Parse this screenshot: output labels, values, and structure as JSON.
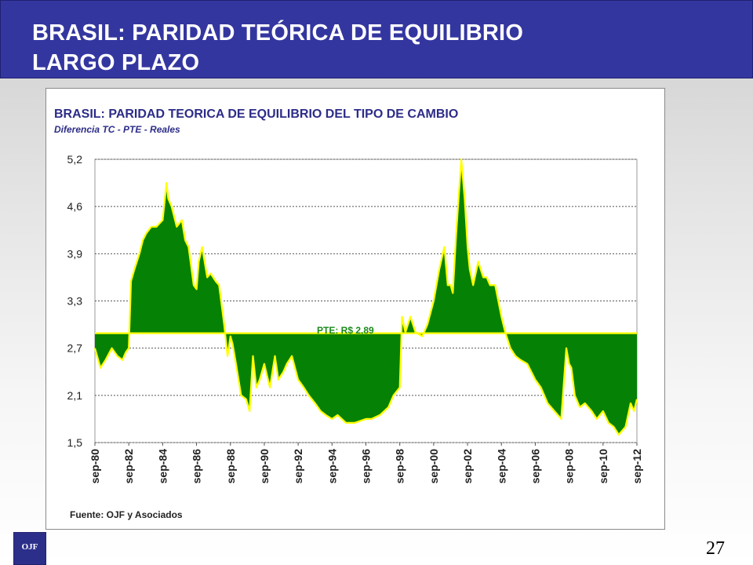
{
  "slide": {
    "title_line1": "BRASIL: PARIDAD TEÓRICA DE EQUILIBRIO",
    "title_line2": "LARGO PLAZO",
    "logo_text": "OJF",
    "page_number": "27"
  },
  "colors": {
    "header_bg": "#3436a0",
    "chart_title": "#2c2c88",
    "fill": "#058205",
    "outline": "#ffff00",
    "annotation": "#1a8a1a"
  },
  "chart_data": {
    "type": "area",
    "title": "BRASIL: PARIDAD TEORICA DE EQUILIBRIO DEL TIPO DE CAMBIO",
    "subtitle": "Diferencia TC - PTE - Reales",
    "source": "Fuente: OJF y Asociados",
    "xlabel": "",
    "ylabel": "",
    "baseline": 2.89,
    "baseline_label": "PTE: R$ 2,89",
    "y_ticks": [
      "5,2",
      "4,6",
      "3,9",
      "3,3",
      "2,7",
      "2,1",
      "1,5"
    ],
    "y_tick_values": [
      5.2,
      4.6,
      3.9,
      3.3,
      2.7,
      2.1,
      1.5
    ],
    "ylim": [
      1.5,
      5.2
    ],
    "x_ticks": [
      "sep-80",
      "sep-82",
      "sep-84",
      "sep-86",
      "sep-88",
      "sep-90",
      "sep-92",
      "sep-94",
      "sep-96",
      "sep-98",
      "sep-00",
      "sep-02",
      "sep-04",
      "sep-06",
      "sep-08",
      "sep-10",
      "sep-12"
    ],
    "x_tick_values": [
      1980.67,
      1982.67,
      1984.67,
      1986.67,
      1988.67,
      1990.67,
      1992.67,
      1994.67,
      1996.67,
      1998.67,
      2000.67,
      2002.67,
      2004.67,
      2006.67,
      2008.67,
      2010.67,
      2012.67
    ],
    "xlim": [
      1980.67,
      2012.67
    ],
    "grid": "horizontal dotted",
    "x": [
      1980.67,
      1981.0,
      1981.3,
      1981.67,
      1982.0,
      1982.3,
      1982.5,
      1982.67,
      1982.8,
      1983.0,
      1983.3,
      1983.5,
      1983.7,
      1984.0,
      1984.3,
      1984.67,
      1984.9,
      1985.0,
      1985.2,
      1985.5,
      1985.8,
      1986.0,
      1986.2,
      1986.5,
      1986.67,
      1986.8,
      1987.0,
      1987.3,
      1987.5,
      1987.8,
      1988.0,
      1988.3,
      1988.5,
      1988.67,
      1988.8,
      1989.0,
      1989.3,
      1989.6,
      1989.8,
      1990.0,
      1990.2,
      1990.4,
      1990.67,
      1991.0,
      1991.3,
      1991.5,
      1991.8,
      1992.0,
      1992.3,
      1992.67,
      1993.0,
      1993.3,
      1993.67,
      1994.0,
      1994.3,
      1994.67,
      1995.0,
      1995.5,
      1996.0,
      1996.67,
      1997.0,
      1997.5,
      1998.0,
      1998.3,
      1998.67,
      1998.8,
      1999.0,
      1999.3,
      1999.6,
      2000.0,
      2000.3,
      2000.67,
      2001.0,
      2001.3,
      2001.5,
      2001.67,
      2001.8,
      2002.0,
      2002.3,
      2002.5,
      2002.67,
      2002.8,
      2003.0,
      2003.3,
      2003.6,
      2003.8,
      2004.0,
      2004.3,
      2004.67,
      2004.9,
      2005.2,
      2005.5,
      2005.8,
      2006.2,
      2006.67,
      2007.0,
      2007.4,
      2007.8,
      2008.2,
      2008.5,
      2008.67,
      2008.8,
      2009.0,
      2009.3,
      2009.6,
      2010.0,
      2010.3,
      2010.67,
      2011.0,
      2011.3,
      2011.6,
      2012.0,
      2012.3,
      2012.5,
      2012.67
    ],
    "series": [
      {
        "values": [
          2.7,
          2.45,
          2.55,
          2.7,
          2.6,
          2.55,
          2.65,
          2.7,
          3.55,
          3.7,
          3.9,
          4.1,
          4.2,
          4.3,
          4.3,
          4.4,
          4.9,
          4.7,
          4.6,
          4.3,
          4.4,
          4.1,
          4.0,
          3.5,
          3.45,
          3.8,
          4.0,
          3.6,
          3.65,
          3.55,
          3.5,
          3.0,
          2.6,
          2.85,
          2.75,
          2.5,
          2.1,
          2.05,
          1.9,
          2.6,
          2.2,
          2.3,
          2.5,
          2.2,
          2.6,
          2.3,
          2.4,
          2.5,
          2.6,
          2.3,
          2.2,
          2.1,
          2.0,
          1.9,
          1.85,
          1.8,
          1.85,
          1.75,
          1.75,
          1.8,
          1.8,
          1.85,
          1.95,
          2.1,
          2.2,
          3.1,
          2.9,
          3.1,
          2.9,
          2.85,
          3.0,
          3.3,
          3.7,
          4.0,
          3.5,
          3.5,
          3.4,
          4.2,
          5.2,
          4.7,
          4.0,
          3.7,
          3.5,
          3.8,
          3.6,
          3.6,
          3.5,
          3.5,
          3.1,
          2.9,
          2.7,
          2.6,
          2.55,
          2.5,
          2.3,
          2.2,
          2.0,
          1.9,
          1.8,
          2.7,
          2.5,
          2.45,
          2.1,
          1.95,
          2.0,
          1.9,
          1.8,
          1.9,
          1.75,
          1.7,
          1.6,
          1.7,
          2.0,
          1.9,
          2.05
        ]
      }
    ]
  }
}
